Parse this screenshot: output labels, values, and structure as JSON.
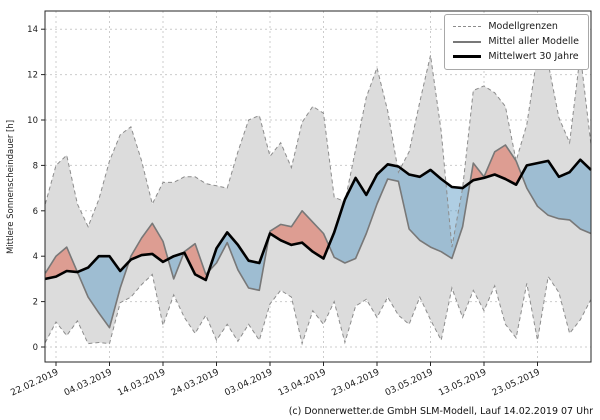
{
  "figure": {
    "y_axis_label": "Mittlere Sonnenscheindauer [h]",
    "caption": "(c) Donnerwetter.de GmbH SLM-Modell, Lauf 14.02.2019 07 Uhr"
  },
  "legend": {
    "position": "top-right",
    "items": [
      {
        "label": "Modellgrenzen",
        "style": "dashed-gray-line"
      },
      {
        "label": "Mittel aller Modelle",
        "style": "solid-gray-line"
      },
      {
        "label": "Mittelwert 30 Jahre",
        "style": "thick-black-line"
      }
    ]
  },
  "colors": {
    "band_fill": "#dcdcdc",
    "bound_line": "#8c8c8c",
    "model_mean_line": "#787878",
    "mean30_line": "#000000",
    "above_fill": "rgba(222,105,85,0.55)",
    "below_fill": "rgba(95,158,199,0.5)",
    "grid": "#cccccc",
    "spine": "#262626"
  },
  "chart_data": {
    "type": "line",
    "title": "",
    "xlabel": "",
    "ylabel": "Mittlere Sonnenscheindauer [h]",
    "grid": true,
    "legend_position": "top-right",
    "ylim": [
      -0.7,
      14.8
    ],
    "y_ticks": [
      0,
      2,
      4,
      6,
      8,
      10,
      12,
      14
    ],
    "x_tick_labels": [
      "22.02.2019",
      "04.03.2019",
      "14.03.2019",
      "24.03.2019",
      "03.04.2019",
      "13.04.2019",
      "23.04.2019",
      "03.05.2019",
      "13.05.2019",
      "23.05.2019"
    ],
    "x_tick_days": [
      0,
      10,
      20,
      30,
      40,
      50,
      60,
      70,
      80,
      90
    ],
    "x_unit": "days since 22.02.2019; axis spans day -2 to day 100",
    "x_days": [
      -2,
      0,
      2,
      4,
      6,
      8,
      10,
      12,
      14,
      16,
      18,
      20,
      22,
      24,
      26,
      28,
      30,
      32,
      34,
      36,
      38,
      40,
      42,
      44,
      46,
      48,
      50,
      52,
      54,
      56,
      58,
      60,
      62,
      64,
      66,
      68,
      70,
      72,
      74,
      76,
      78,
      80,
      82,
      84,
      86,
      88,
      90,
      92,
      94,
      96,
      98,
      100
    ],
    "series": [
      {
        "name": "Modellgrenzen (oben)",
        "style": "dashed-gray",
        "values": [
          6.3,
          8.0,
          8.45,
          6.3,
          5.3,
          6.5,
          8.2,
          9.35,
          9.7,
          8.2,
          6.3,
          7.25,
          7.25,
          7.5,
          7.5,
          7.2,
          7.1,
          7.0,
          8.6,
          10.0,
          10.2,
          8.4,
          9.0,
          7.9,
          9.9,
          10.6,
          10.3,
          6.6,
          6.4,
          8.7,
          11.0,
          12.3,
          10.4,
          7.7,
          8.6,
          10.8,
          12.85,
          9.5,
          4.4,
          7.0,
          11.3,
          11.5,
          11.2,
          10.6,
          8.2,
          9.8,
          12.9,
          12.5,
          10.1,
          9.0,
          12.9,
          8.9
        ]
      },
      {
        "name": "Modellgrenzen (unten)",
        "style": "dashed-gray",
        "values": [
          0.2,
          1.1,
          0.5,
          1.15,
          0.15,
          0.2,
          0.15,
          1.95,
          2.2,
          2.75,
          3.2,
          0.95,
          2.3,
          1.3,
          0.6,
          1.4,
          0.3,
          1.0,
          0.25,
          1.0,
          0.3,
          1.9,
          2.5,
          2.2,
          0.15,
          1.6,
          1.0,
          2.0,
          0.2,
          1.8,
          2.1,
          1.3,
          2.2,
          1.4,
          1.0,
          2.2,
          1.2,
          0.3,
          2.6,
          1.3,
          2.5,
          1.6,
          2.7,
          1.0,
          0.4,
          2.8,
          0.3,
          3.1,
          2.4,
          0.6,
          1.2,
          2.1
        ]
      },
      {
        "name": "Mittel aller Modelle",
        "style": "solid-gray",
        "values": [
          3.25,
          4.0,
          4.4,
          3.3,
          2.2,
          1.5,
          0.85,
          2.6,
          4.0,
          4.8,
          5.45,
          4.65,
          3.0,
          4.2,
          4.55,
          3.2,
          3.7,
          4.6,
          3.4,
          2.6,
          2.5,
          5.1,
          5.4,
          5.3,
          6.0,
          5.5,
          5.0,
          3.95,
          3.7,
          3.9,
          5.0,
          6.3,
          7.4,
          7.3,
          5.2,
          4.7,
          4.4,
          4.2,
          3.9,
          5.3,
          8.1,
          7.5,
          8.6,
          8.9,
          8.2,
          7.0,
          6.2,
          5.8,
          5.65,
          5.6,
          5.2,
          5.0
        ]
      },
      {
        "name": "Mittelwert 30 Jahre",
        "style": "thick-black",
        "values": [
          3.0,
          3.1,
          3.35,
          3.3,
          3.5,
          4.0,
          4.0,
          3.35,
          3.85,
          4.05,
          4.1,
          3.75,
          4.0,
          4.15,
          3.2,
          2.95,
          4.35,
          5.05,
          4.5,
          3.8,
          3.7,
          5.0,
          4.7,
          4.5,
          4.6,
          4.2,
          3.9,
          5.05,
          6.5,
          7.45,
          6.7,
          7.6,
          8.05,
          7.95,
          7.6,
          7.5,
          7.8,
          7.4,
          7.05,
          7.0,
          7.35,
          7.45,
          7.6,
          7.4,
          7.15,
          8.0,
          8.1,
          8.2,
          7.5,
          7.7,
          8.25,
          7.8
        ]
      }
    ],
    "fills": [
      {
        "name": "Modellspanne zwischen Modellgrenzen",
        "color": "#dcdcdc"
      },
      {
        "name": "Modellmittel ueber 30-Jahre-Mittel",
        "color": "rgba(222,105,85,0.55)"
      },
      {
        "name": "Modellmittel unter 30-Jahre-Mittel",
        "color": "rgba(95,158,199,0.5)"
      }
    ]
  }
}
